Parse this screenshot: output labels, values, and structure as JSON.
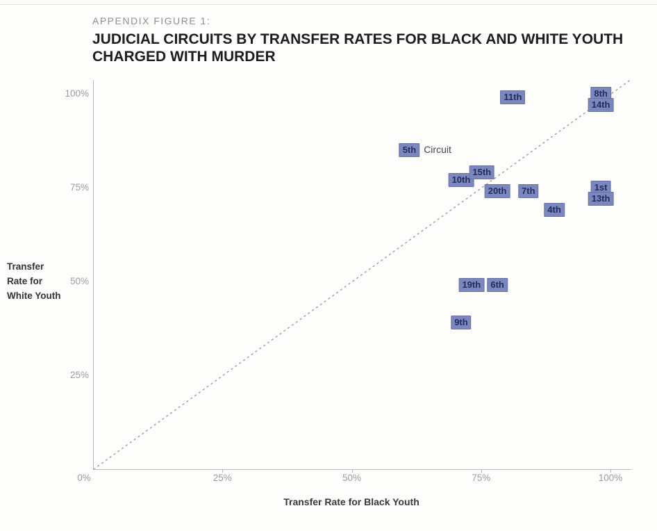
{
  "figure": {
    "kicker": "APPENDIX FIGURE 1:",
    "title_line1": "JUDICIAL CIRCUITS BY TRANSFER RATES FOR BLACK AND WHITE YOUTH",
    "title_line2": "CHARGED WITH MURDER"
  },
  "chart_data": {
    "type": "scatter",
    "title": "Judicial circuits by transfer rates for Black and white youth charged with murder",
    "xlabel": "Transfer Rate for Black Youth",
    "ylabel": "Transfer Rate for White Youth",
    "ylabel_lines": [
      "Transfer",
      "Rate for",
      "White Youth"
    ],
    "xlim": [
      0,
      100
    ],
    "ylim": [
      0,
      100
    ],
    "grid": false,
    "legend": false,
    "reference_line": {
      "type": "identity y=x",
      "style": "dotted"
    },
    "x_ticks": [
      {
        "label": "0%",
        "value": 0
      },
      {
        "label": "25%",
        "value": 25
      },
      {
        "label": "50%",
        "value": 50
      },
      {
        "label": "75%",
        "value": 75
      },
      {
        "label": "100%",
        "value": 100
      }
    ],
    "y_ticks": [
      {
        "label": "100%",
        "value": 100
      },
      {
        "label": "75%",
        "value": 75
      },
      {
        "label": "50%",
        "value": 50
      },
      {
        "label": "25%",
        "value": 25
      },
      {
        "label": "0%",
        "value": 0
      }
    ],
    "points": [
      {
        "label": "11th",
        "x": 81,
        "y": 99
      },
      {
        "label": "8th",
        "x": 98,
        "y": 100
      },
      {
        "label": "14th",
        "x": 98,
        "y": 97
      },
      {
        "label": "5th",
        "x": 61,
        "y": 85,
        "suffix": "Circuit"
      },
      {
        "label": "10th",
        "x": 71,
        "y": 77
      },
      {
        "label": "15th",
        "x": 75,
        "y": 79
      },
      {
        "label": "20th",
        "x": 78,
        "y": 74
      },
      {
        "label": "7th",
        "x": 84,
        "y": 74
      },
      {
        "label": "1st",
        "x": 98,
        "y": 75
      },
      {
        "label": "13th",
        "x": 98,
        "y": 72
      },
      {
        "label": "4th",
        "x": 89,
        "y": 69
      },
      {
        "label": "19th",
        "x": 73,
        "y": 49
      },
      {
        "label": "6th",
        "x": 78,
        "y": 49
      },
      {
        "label": "9th",
        "x": 71,
        "y": 39
      }
    ],
    "colors": {
      "point_fill": "#7b87bd",
      "point_border": "#6872a9",
      "point_text": "#1f2c5e",
      "axis_line": "#b9b9b9",
      "tick_label": "#9c9c9c",
      "reference_line": "#a6a6a6",
      "title": "#1c1c1c",
      "kicker": "#8f8f8f",
      "axis_title": "#333333"
    }
  }
}
